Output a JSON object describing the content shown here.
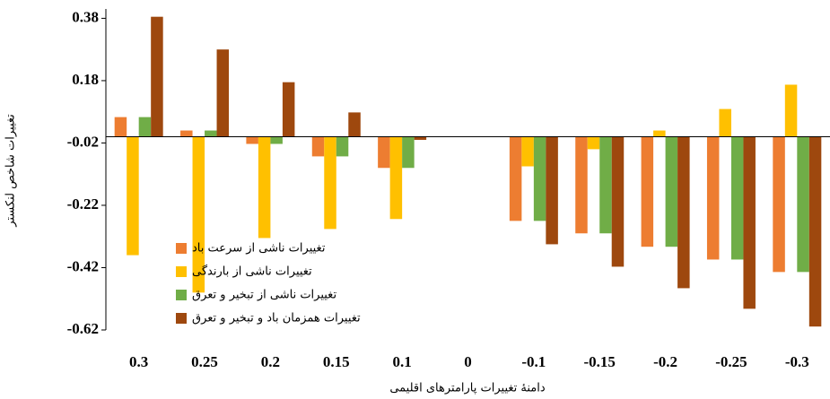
{
  "chart_data": {
    "type": "bar",
    "y_label": "تغییرات شاخص لنکستر",
    "x_label": "دامنهٔ تغییرات پارامترهای اقلیمی",
    "categories": [
      "0.3",
      "0.25",
      "0.2",
      "0.15",
      "0.1",
      "0",
      "-0.1",
      "-0.15",
      "-0.2",
      "-0.25",
      "-0.3"
    ],
    "series": [
      {
        "name": "تغییرات ناشی از سرعت باد",
        "color": "#ED7D31",
        "values": [
          0.063,
          0.02,
          -0.023,
          -0.063,
          -0.1,
          0,
          -0.27,
          -0.31,
          -0.353,
          -0.394,
          -0.434
        ]
      },
      {
        "name": "تغییرات ناشی از بارندگی",
        "color": "#FFC000",
        "values": [
          -0.38,
          -0.5,
          -0.325,
          -0.296,
          -0.264,
          0,
          -0.095,
          -0.04,
          0.02,
          0.089,
          0.167
        ]
      },
      {
        "name": "تغییرات ناشی از تبخیر و تعرق",
        "color": "#70AD47",
        "values": [
          0.063,
          0.02,
          -0.023,
          -0.063,
          -0.1,
          0,
          -0.27,
          -0.31,
          -0.353,
          -0.394,
          -0.434
        ]
      },
      {
        "name": "تغییرات همزمان باد و تبخیر و تعرق",
        "color": "#9E480E",
        "values": [
          0.385,
          0.28,
          0.175,
          0.078,
          -0.01,
          0,
          -0.345,
          -0.417,
          -0.486,
          -0.552,
          -0.609
        ]
      }
    ],
    "ylim": [
      -0.62,
      0.41
    ],
    "yticks": [
      -0.62,
      -0.42,
      -0.22,
      -0.02,
      0.18,
      0.38
    ]
  }
}
